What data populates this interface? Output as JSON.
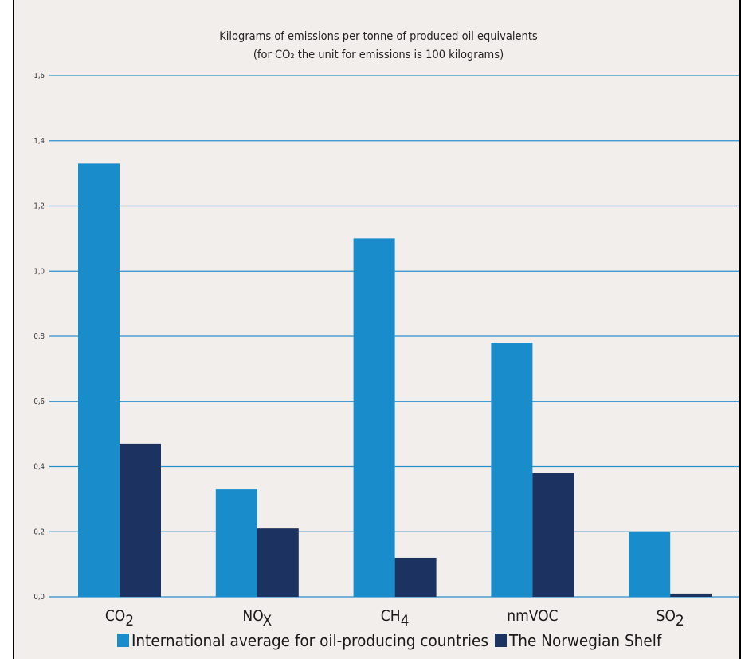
{
  "chart_data": {
    "type": "bar",
    "title": "Kilograms of emissions per tonne of produced oil equivalents",
    "subtitle": "(for CO₂ the unit for emissions is 100 kilograms)",
    "categories": [
      {
        "base": "CO",
        "sub": "2"
      },
      {
        "base": "NO",
        "sub": "X"
      },
      {
        "base": "CH",
        "sub": "4"
      },
      {
        "base": "nmVOC",
        "sub": ""
      },
      {
        "base": "SO",
        "sub": "2"
      }
    ],
    "series": [
      {
        "name": "International average for oil-producing countries",
        "color": "#198ccb",
        "values": [
          1.33,
          0.33,
          1.1,
          0.78,
          0.2
        ]
      },
      {
        "name": "The Norwegian Shelf",
        "color": "#1c3260",
        "values": [
          0.47,
          0.21,
          0.12,
          0.38,
          0.01
        ]
      }
    ],
    "y_ticks": [
      "0,0",
      "0,2",
      "0,4",
      "0,6",
      "0,8",
      "1,0",
      "1,2",
      "1,4",
      "1,6"
    ],
    "ylim": [
      0,
      1.6
    ],
    "grid": true,
    "grid_color": "#2a8fcc",
    "legend_position": "bottom"
  }
}
